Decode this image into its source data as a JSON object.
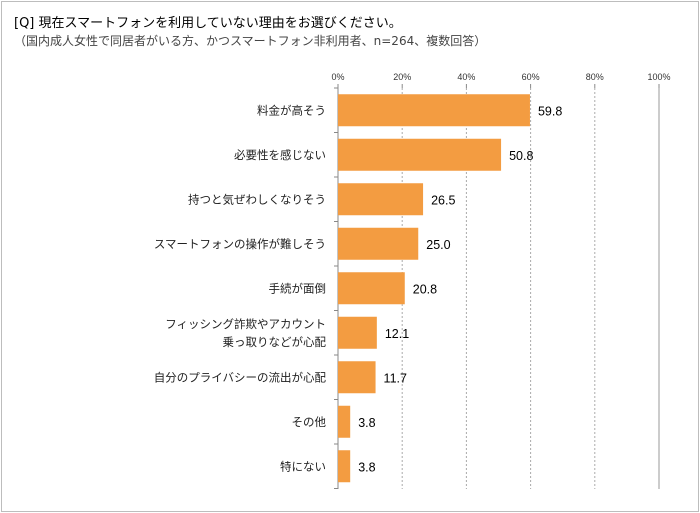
{
  "chart_data": {
    "type": "bar",
    "orientation": "horizontal",
    "title": "[Q] 現在スマートフォンを利用していない理由をお選びください。",
    "subtitle": "（国内成人女性で同居者がいる方、かつスマートフォン非利用者、n=264、複数回答）",
    "categories": [
      [
        "料金が高そう"
      ],
      [
        "必要性を感じない"
      ],
      [
        "持つと気ぜわしくなりそう"
      ],
      [
        "スマートフォンの操作が難しそう"
      ],
      [
        "手続が面倒"
      ],
      [
        "フィッシング詐欺やアカウント",
        "乗っ取りなどが心配"
      ],
      [
        "自分のプライバシーの流出が心配"
      ],
      [
        "その他"
      ],
      [
        "特にない"
      ]
    ],
    "values": [
      59.8,
      50.8,
      26.5,
      25.0,
      20.8,
      12.1,
      11.7,
      3.8,
      3.8
    ],
    "value_labels": [
      "59.8",
      "50.8",
      "26.5",
      "25.0",
      "20.8",
      "12.1",
      "11.7",
      "3.8",
      "3.8"
    ],
    "xlim": [
      0,
      100
    ],
    "xticks": [
      "0%",
      "20%",
      "40%",
      "60%",
      "80%",
      "100%"
    ],
    "grid": true,
    "bar_color": "#f39c41"
  }
}
